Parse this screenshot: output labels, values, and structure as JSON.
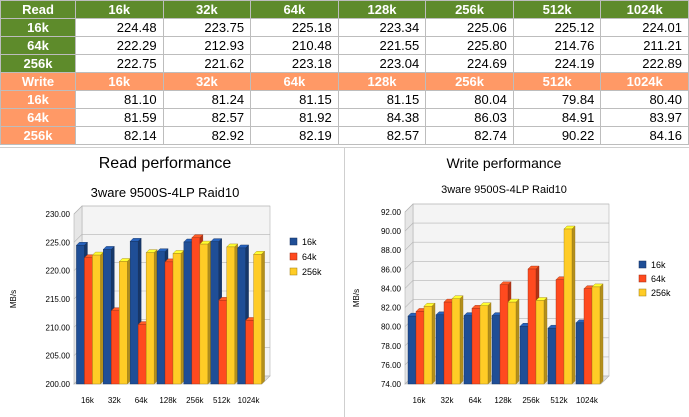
{
  "table": {
    "read_label": "Read",
    "write_label": "Write",
    "columns": [
      "16k",
      "32k",
      "64k",
      "128k",
      "256k",
      "512k",
      "1024k"
    ],
    "read_rows": [
      {
        "label": "16k",
        "values": [
          "224.48",
          "223.75",
          "225.18",
          "223.34",
          "225.06",
          "225.12",
          "224.01"
        ]
      },
      {
        "label": "64k",
        "values": [
          "222.29",
          "212.93",
          "210.48",
          "221.55",
          "225.80",
          "214.76",
          "211.21"
        ]
      },
      {
        "label": "256k",
        "values": [
          "222.75",
          "221.62",
          "223.18",
          "223.04",
          "224.69",
          "224.19",
          "222.89"
        ]
      }
    ],
    "write_rows": [
      {
        "label": "16k",
        "values": [
          "81.10",
          "81.24",
          "81.15",
          "81.15",
          "80.04",
          "79.84",
          "80.40"
        ]
      },
      {
        "label": "64k",
        "values": [
          "81.59",
          "82.57",
          "81.92",
          "84.38",
          "86.03",
          "84.91",
          "83.97"
        ]
      },
      {
        "label": "256k",
        "values": [
          "82.14",
          "82.92",
          "82.19",
          "82.57",
          "82.74",
          "90.22",
          "84.16"
        ]
      }
    ]
  },
  "colors": {
    "s16k": "#1f4e96",
    "s64k": "#ff4a1f",
    "s256k": "#ffcc26",
    "read": "#5e8b2b",
    "write": "#ff9966"
  },
  "chart_data": [
    {
      "type": "bar",
      "title": "Read performance",
      "subtitle": "3ware 9500S-4LP Raid10",
      "ylabel": "MB/s",
      "xlabel": "",
      "ylim": [
        200,
        230
      ],
      "yticks": [
        "200.00",
        "205.00",
        "210.00",
        "215.00",
        "220.00",
        "225.00",
        "230.00"
      ],
      "categories": [
        "16k",
        "32k",
        "64k",
        "128k",
        "256k",
        "512k",
        "1024k"
      ],
      "series": [
        {
          "name": "16k",
          "values": [
            224.48,
            223.75,
            225.18,
            223.34,
            225.06,
            225.12,
            224.01
          ]
        },
        {
          "name": "64k",
          "values": [
            222.29,
            212.93,
            210.48,
            221.55,
            225.8,
            214.76,
            211.21
          ]
        },
        {
          "name": "256k",
          "values": [
            222.75,
            221.62,
            223.18,
            223.04,
            224.69,
            224.19,
            222.89
          ]
        }
      ],
      "legend": "right",
      "grid": true
    },
    {
      "type": "bar",
      "title": "Write performance",
      "subtitle": "3ware 9500S-4LP Raid10",
      "ylabel": "MB/s",
      "xlabel": "",
      "ylim": [
        74,
        92
      ],
      "yticks": [
        "74.00",
        "76.00",
        "78.00",
        "80.00",
        "82.00",
        "84.00",
        "86.00",
        "88.00",
        "90.00",
        "92.00"
      ],
      "categories": [
        "16k",
        "32k",
        "64k",
        "128k",
        "256k",
        "512k",
        "1024k"
      ],
      "series": [
        {
          "name": "16k",
          "values": [
            81.1,
            81.24,
            81.15,
            81.15,
            80.04,
            79.84,
            80.4
          ]
        },
        {
          "name": "64k",
          "values": [
            81.59,
            82.57,
            81.92,
            84.38,
            86.03,
            84.91,
            83.97
          ]
        },
        {
          "name": "256k",
          "values": [
            82.14,
            82.92,
            82.19,
            82.57,
            82.74,
            90.22,
            84.16
          ]
        }
      ],
      "legend": "right",
      "grid": true
    }
  ]
}
